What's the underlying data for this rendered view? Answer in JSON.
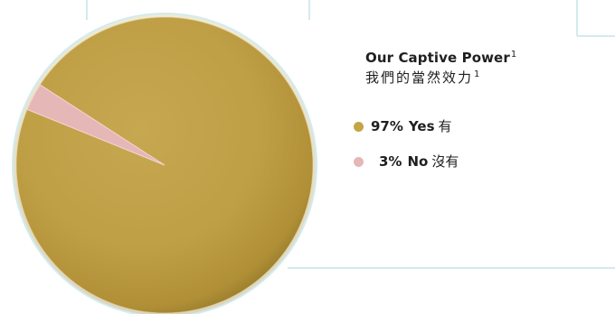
{
  "chart_data": {
    "type": "pie",
    "title": "Our Captive Power",
    "title_footnote": "1",
    "subtitle": "我們的當然效力",
    "subtitle_footnote": "1",
    "slices": [
      {
        "percent_label": "97%",
        "name": "Yes",
        "name_zh": "有",
        "value": 97,
        "color": "#c4a447"
      },
      {
        "percent_label": "3%",
        "name": "No",
        "name_zh": "沒有",
        "value": 3,
        "color": "#e6b7b7"
      }
    ]
  }
}
